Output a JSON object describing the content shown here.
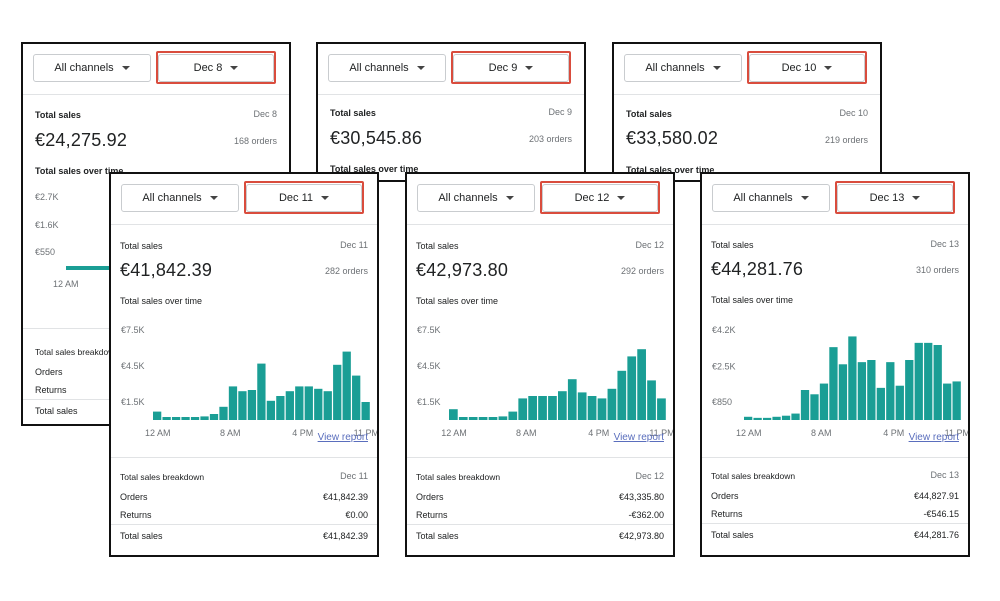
{
  "common": {
    "channels_label": "All channels",
    "total_sales_label": "Total sales",
    "over_time_label": "Total sales over time",
    "breakdown_label": "Total sales breakdown",
    "orders_label": "Orders",
    "returns_label": "Returns",
    "total_label": "Total sales",
    "view_report": "View report",
    "accent_color": "#1a9e95",
    "highlight_color": "#d94c3d",
    "icons": [
      "caret-down-icon"
    ]
  },
  "panels": [
    {
      "date": "Dec 8",
      "total": "€24,275.92",
      "orders_count": "168 orders",
      "chart_data": {
        "type": "bar",
        "yticks": [
          "€2.7K",
          "€1.6K",
          "€550"
        ],
        "xticks": [
          "12 AM"
        ],
        "values": []
      }
    },
    {
      "date": "Dec 9",
      "total": "€30,545.86",
      "orders_count": "203 orders",
      "chart_data": {
        "type": "bar",
        "yticks": [],
        "xticks": [],
        "values": []
      }
    },
    {
      "date": "Dec 10",
      "total": "€33,580.02",
      "orders_count": "219 orders",
      "chart_data": {
        "type": "bar",
        "yticks": [],
        "xticks": [],
        "values": []
      }
    },
    {
      "date": "Dec 11",
      "total": "€41,842.39",
      "orders_count": "282 orders",
      "orders_value": "€41,842.39",
      "returns_value": "€0.00",
      "total_value": "€41,842.39",
      "chart_data": {
        "type": "bar",
        "ylim": [
          0,
          7500
        ],
        "yticks": [
          "€7.5K",
          "€4.5K",
          "€1.5K"
        ],
        "ytick_values": [
          7500,
          4500,
          1500
        ],
        "xticks": [
          "12 AM",
          "8 AM",
          "4 PM",
          "11 PM"
        ],
        "xtick_hours": [
          0,
          8,
          16,
          23
        ],
        "values": [
          700,
          250,
          250,
          250,
          250,
          300,
          500,
          1100,
          2800,
          2400,
          2500,
          4700,
          1600,
          2000,
          2400,
          2800,
          2800,
          2600,
          2400,
          4600,
          5700,
          3700,
          1500
        ]
      }
    },
    {
      "date": "Dec 12",
      "total": "€42,973.80",
      "orders_count": "292 orders",
      "orders_value": "€43,335.80",
      "returns_value": "-€362.00",
      "total_value": "€42,973.80",
      "chart_data": {
        "type": "bar",
        "ylim": [
          0,
          7500
        ],
        "yticks": [
          "€7.5K",
          "€4.5K",
          "€1.5K"
        ],
        "ytick_values": [
          7500,
          4500,
          1500
        ],
        "xticks": [
          "12 AM",
          "8 AM",
          "4 PM",
          "11 PM"
        ],
        "xtick_hours": [
          0,
          8,
          16,
          23
        ],
        "values": [
          900,
          250,
          250,
          250,
          250,
          300,
          700,
          1800,
          2000,
          2000,
          2000,
          2400,
          3400,
          2300,
          2000,
          1800,
          2600,
          4100,
          5300,
          5900,
          3300,
          1800
        ]
      }
    },
    {
      "date": "Dec 13",
      "total": "€44,281.76",
      "orders_count": "310 orders",
      "orders_value": "€44,827.91",
      "returns_value": "-€546.15",
      "total_value": "€44,281.76",
      "chart_data": {
        "type": "bar",
        "ylim": [
          0,
          4200
        ],
        "yticks": [
          "€4.2K",
          "€2.5K",
          "€850"
        ],
        "ytick_values": [
          4200,
          2500,
          850
        ],
        "xticks": [
          "12 AM",
          "8 AM",
          "4 PM",
          "11 PM"
        ],
        "xtick_hours": [
          0,
          8,
          16,
          23
        ],
        "values": [
          150,
          100,
          100,
          150,
          200,
          300,
          1400,
          1200,
          1700,
          3400,
          2600,
          3900,
          2700,
          2800,
          1500,
          2700,
          1600,
          2800,
          3600,
          3600,
          3500,
          1700,
          1800
        ]
      }
    }
  ]
}
